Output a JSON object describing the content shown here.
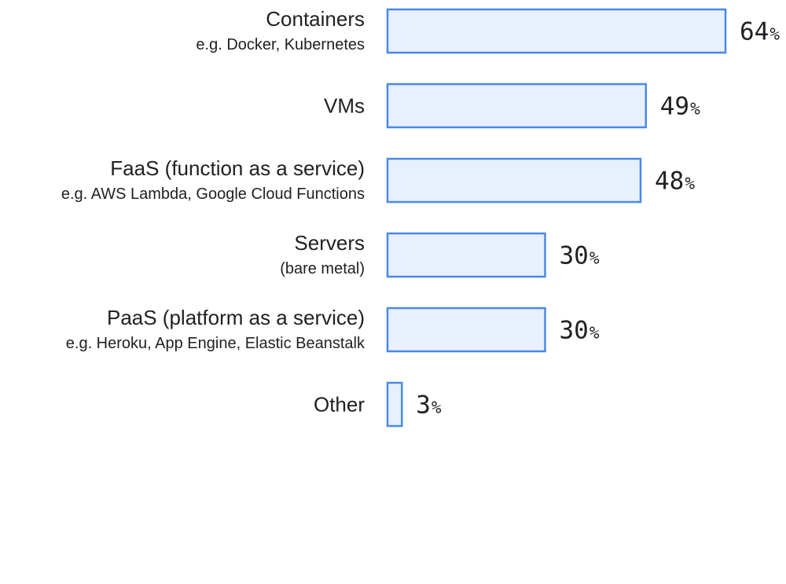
{
  "chart_data": {
    "type": "bar",
    "orientation": "horizontal",
    "categories": [
      "Containers",
      "VMs",
      "FaaS (function as a service)",
      "Servers",
      "PaaS (platform as a service)",
      "Other"
    ],
    "sublabels": [
      "e.g. Docker, Kubernetes",
      "",
      "e.g. AWS Lambda, Google Cloud Functions",
      "(bare metal)",
      "e.g. Heroku, App Engine, Elastic Beanstalk",
      ""
    ],
    "values": [
      64,
      49,
      48,
      30,
      30,
      3
    ],
    "value_labels": [
      "64",
      "49",
      "48",
      "30",
      "30",
      "3"
    ],
    "unit": "%",
    "title": "",
    "xlabel": "",
    "ylabel": "",
    "xlim": [
      0,
      64
    ],
    "grid": false,
    "legend": "none",
    "colors": {
      "bar_fill": "#e8f0fe",
      "bar_stroke": "#4a89e8",
      "text": "#202124"
    }
  }
}
